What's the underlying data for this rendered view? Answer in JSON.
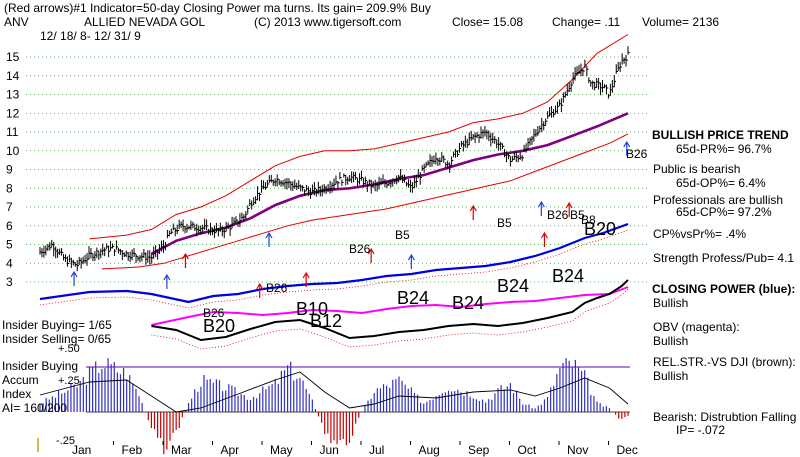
{
  "header": {
    "line1": "(Red arrows)#1 Indicator=50-day Closing Power ma turns. Its gain= 209.9% Buy",
    "ticker": "ANV",
    "company": "ALLIED NEVADA GOL",
    "copyright": "(C) 2013 www.tigersoft.com",
    "close": "Close=  15.08",
    "change": "Change= .11",
    "volume": "Volume= 2136",
    "date_range": "12/ 18/ 8- 12/ 31/ 9"
  },
  "right_panel": {
    "trend_title": "BULLISH PRICE TREND",
    "pr": "65d-PR%= 96.7%",
    "public": "Public is bearish",
    "op": "65d-OP%= 6.4%",
    "pros": "Professionals are bullish",
    "cp": "65d-CP%= 97.2%",
    "cpvspr": "CP%vsPr%=  .4%",
    "strength": "Strength Profess/Pub= 4.1",
    "closing_power": "CLOSING POWER (blue):",
    "closing_power_val": "Bullish",
    "obv": "OBV (magenta):",
    "obv_val": "Bullish",
    "relstr": "REL.STR.-VS DJI (brown):",
    "relstr_val": "Bullish",
    "bearish": "Bearish: Distrubtion Falling",
    "ip": "IP= -.072"
  },
  "left_labels": {
    "insider_buying": "Insider Buying= 1/65",
    "insider_selling": "Insider Selling= 0/65",
    "plus50": "+.50",
    "insider_buying2": "Insider Buying",
    "accum": "Accum",
    "plus25": "+.25",
    "index": "Index",
    "ai": "AI= 160/200",
    "minus25": "-.25"
  },
  "colors": {
    "price": "#000000",
    "bands": "#e00000",
    "ma": "#800080",
    "closing_power": "#0000e0",
    "obv": "#ff00ff",
    "relstr": "#000000",
    "accum_pos": "#3030c0",
    "accum_neg": "#c00000",
    "grid": "#2a9a2a",
    "buy_arrow": "#e00000",
    "blue_arrow": "#2040e0"
  },
  "chart_data": {
    "type": "line",
    "title": "ALLIED NEVADA GOL (ANV)",
    "ylim": [
      2.5,
      15.7
    ],
    "yticks": [
      3,
      4,
      5,
      6,
      7,
      8,
      9,
      10,
      11,
      12,
      13,
      14,
      15
    ],
    "months": [
      "Jan",
      "Feb",
      "Mar",
      "Apr",
      "May",
      "Jun",
      "Jul",
      "Aug",
      "Sep",
      "Oct",
      "Nov",
      "Dec"
    ],
    "price_path": [
      [
        0,
        4.6
      ],
      [
        2,
        5.0
      ],
      [
        4,
        4.2
      ],
      [
        6,
        3.9
      ],
      [
        8,
        4.4
      ],
      [
        10,
        4.7
      ],
      [
        12,
        4.8
      ],
      [
        14,
        4.5
      ],
      [
        16,
        4.4
      ],
      [
        18,
        4.3
      ],
      [
        20,
        4.9
      ],
      [
        21,
        5.6
      ],
      [
        23,
        6.0
      ],
      [
        26,
        5.9
      ],
      [
        29,
        5.7
      ],
      [
        31,
        6.0
      ],
      [
        33,
        6.5
      ],
      [
        34,
        7.2
      ],
      [
        36,
        8.0
      ],
      [
        38,
        8.5
      ],
      [
        40,
        8.3
      ],
      [
        42,
        8.0
      ],
      [
        44,
        7.8
      ],
      [
        46,
        8.0
      ],
      [
        48,
        8.4
      ],
      [
        50,
        8.6
      ],
      [
        52,
        8.4
      ],
      [
        54,
        8.1
      ],
      [
        56,
        8.3
      ],
      [
        58,
        8.6
      ],
      [
        60,
        8.0
      ],
      [
        62,
        9.0
      ],
      [
        64,
        9.7
      ],
      [
        66,
        9.3
      ],
      [
        68,
        10.2
      ],
      [
        70,
        10.7
      ],
      [
        72,
        11.0
      ],
      [
        74,
        10.4
      ],
      [
        76,
        9.5
      ],
      [
        78,
        9.8
      ],
      [
        80,
        10.9
      ],
      [
        82,
        11.8
      ],
      [
        84,
        12.4
      ],
      [
        86,
        13.8
      ],
      [
        88,
        14.5
      ],
      [
        89,
        13.6
      ],
      [
        91,
        13.4
      ],
      [
        92,
        13.0
      ],
      [
        93,
        14.0
      ],
      [
        94,
        14.8
      ],
      [
        95,
        15.1
      ]
    ],
    "ma50_path": [
      [
        18,
        4.5
      ],
      [
        22,
        5.2
      ],
      [
        26,
        5.6
      ],
      [
        30,
        5.9
      ],
      [
        34,
        6.4
      ],
      [
        38,
        7.1
      ],
      [
        42,
        7.6
      ],
      [
        46,
        7.9
      ],
      [
        50,
        8.0
      ],
      [
        54,
        8.2
      ],
      [
        58,
        8.5
      ],
      [
        62,
        8.7
      ],
      [
        66,
        9.1
      ],
      [
        70,
        9.5
      ],
      [
        74,
        9.8
      ],
      [
        78,
        10.0
      ],
      [
        82,
        10.3
      ],
      [
        86,
        10.8
      ],
      [
        90,
        11.3
      ],
      [
        95,
        12.0
      ]
    ],
    "upper_band": [
      [
        8,
        5.3
      ],
      [
        14,
        5.5
      ],
      [
        18,
        5.8
      ],
      [
        22,
        6.6
      ],
      [
        26,
        7.0
      ],
      [
        30,
        7.6
      ],
      [
        34,
        8.4
      ],
      [
        38,
        9.2
      ],
      [
        42,
        9.7
      ],
      [
        46,
        10.0
      ],
      [
        50,
        10.0
      ],
      [
        54,
        10.1
      ],
      [
        58,
        10.4
      ],
      [
        62,
        10.7
      ],
      [
        66,
        11.0
      ],
      [
        70,
        11.5
      ],
      [
        74,
        11.7
      ],
      [
        78,
        12.0
      ],
      [
        82,
        12.6
      ],
      [
        86,
        13.8
      ],
      [
        90,
        15.2
      ],
      [
        95,
        16.2
      ]
    ],
    "lower_band": [
      [
        10,
        3.7
      ],
      [
        16,
        3.8
      ],
      [
        20,
        4.0
      ],
      [
        24,
        4.4
      ],
      [
        28,
        4.8
      ],
      [
        32,
        5.2
      ],
      [
        36,
        5.6
      ],
      [
        40,
        6.0
      ],
      [
        44,
        6.3
      ],
      [
        48,
        6.5
      ],
      [
        52,
        6.7
      ],
      [
        56,
        6.9
      ],
      [
        60,
        7.2
      ],
      [
        64,
        7.5
      ],
      [
        68,
        7.8
      ],
      [
        72,
        8.1
      ],
      [
        76,
        8.4
      ],
      [
        80,
        8.9
      ],
      [
        84,
        9.4
      ],
      [
        88,
        9.9
      ],
      [
        92,
        10.4
      ],
      [
        95,
        10.9
      ]
    ],
    "signals": [
      {
        "label": "B26",
        "x": 23.5,
        "y": 0.54
      },
      {
        "label": "B26",
        "x": 35,
        "y": 0.44
      },
      {
        "label": "B5",
        "x": 53.5,
        "y": 0.59
      },
      {
        "label": "B26",
        "x": 43,
        "y": 0.56
      },
      {
        "label": "B5",
        "x": 70,
        "y": 0.59
      },
      {
        "label": "B26",
        "x": 81,
        "y": 0.61
      },
      {
        "label": "B5",
        "x": 85.5,
        "y": 0.61
      },
      {
        "label": "B8",
        "x": 86.5,
        "y": 0.63
      },
      {
        "label": "B26",
        "x": 94.5,
        "y": 0.24
      },
      {
        "label": "B20",
        "x": 88.5,
        "y": 0.49
      },
      {
        "label": "B24",
        "x": 59,
        "y": 0.66
      },
      {
        "label": "B24",
        "x": 72.5,
        "y": 0.68
      },
      {
        "label": "B24",
        "x": 83,
        "y": 0.7
      },
      {
        "label": "B24",
        "x": 53,
        "y": 0.63
      },
      {
        "label": "B20",
        "x": 26,
        "y": 0.66
      },
      {
        "label": "B10",
        "x": 41.5,
        "y": 0.68
      },
      {
        "label": "B12",
        "x": 41,
        "y": 0.7
      }
    ]
  }
}
